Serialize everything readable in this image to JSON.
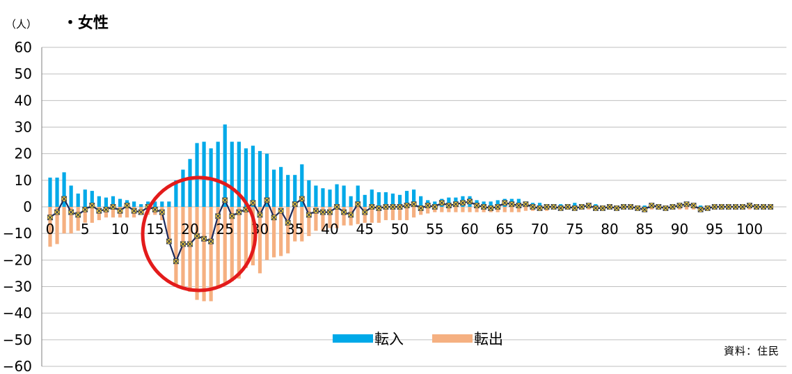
{
  "header": {
    "unit": "（人）",
    "title": "・女性"
  },
  "source": "資料：住民",
  "colors": {
    "inflow": "#00A9E8",
    "outflow": "#F5B081",
    "net_line": "#1B2A5C",
    "net_marker": "#E8C63A",
    "highlight_circle": "#E31B1B",
    "grid": "#BFBFBF"
  },
  "chart_data": {
    "type": "bar",
    "title": "・女性",
    "ylabel": "（人）",
    "ylim": [
      -60,
      60
    ],
    "yticks": [
      60,
      50,
      40,
      30,
      20,
      10,
      0,
      -10,
      -20,
      -30,
      -40,
      -50,
      -60
    ],
    "xlim": [
      0,
      103
    ],
    "xtick_labels": [
      "0",
      "5",
      "10",
      "15",
      "20",
      "25",
      "30",
      "35",
      "40",
      "45",
      "50",
      "55",
      "60",
      "65",
      "70",
      "75",
      "80",
      "85",
      "90",
      "95",
      "100"
    ],
    "xtick_values": [
      0,
      5,
      10,
      15,
      20,
      25,
      30,
      35,
      40,
      45,
      50,
      55,
      60,
      65,
      70,
      75,
      80,
      85,
      90,
      95,
      100
    ],
    "grid": true,
    "legend_position": "bottom-center",
    "annotation": "red circle highlighting ages 15-29",
    "series": [
      {
        "name": "転入",
        "kind": "bar",
        "values": [
          11,
          11,
          13,
          8,
          5,
          6.5,
          6,
          4,
          3.5,
          4,
          3,
          2.5,
          2,
          1,
          2,
          2,
          2,
          2,
          10,
          14,
          18,
          24,
          24.5,
          22,
          24.5,
          31,
          24.5,
          24.5,
          22,
          23,
          21,
          20,
          14,
          15,
          12,
          12,
          16,
          10,
          8,
          7,
          6.5,
          8.5,
          8,
          4,
          8,
          4.5,
          6.5,
          5.5,
          5.5,
          5,
          4.5,
          6,
          6.5,
          4,
          2.5,
          2,
          3,
          3.5,
          3.5,
          4,
          4,
          2.5,
          2,
          2,
          2.5,
          3,
          3,
          3,
          2,
          1.5,
          1.5,
          1,
          1,
          1,
          1,
          1.5,
          1,
          1,
          1,
          0.5,
          0.5,
          0.5,
          1,
          0.5,
          0.5,
          0.5,
          1,
          0.5,
          0.5,
          1,
          1,
          1,
          0.5,
          0.5,
          0.5,
          0.5,
          0.5,
          0.5,
          0.5,
          0.5,
          0.5,
          0.5,
          0.5,
          0.5
        ]
      },
      {
        "name": "転出",
        "kind": "bar",
        "values": [
          -15,
          -14,
          -10,
          -10,
          -9,
          -6,
          -6,
          -5,
          -4,
          -4,
          -4,
          -4,
          -4,
          -3,
          -3,
          -3,
          -5,
          -12,
          -30,
          -31,
          -32,
          -35,
          -35.5,
          -35.5,
          -30,
          -28.5,
          -28,
          -27,
          -23,
          -22,
          -25,
          -20,
          -19,
          -18.5,
          -17.5,
          -13,
          -13,
          -11,
          -9,
          -9,
          -8,
          -8,
          -7,
          -7,
          -6.5,
          -6,
          -6,
          -6,
          -5,
          -5,
          -5,
          -5,
          -4,
          -3,
          -2.5,
          -2,
          -2,
          -2,
          -2,
          -2,
          -2,
          -2,
          -2,
          -2,
          -2,
          -2,
          -2,
          -2,
          -1.5,
          -1.5,
          -1.5,
          -1.5,
          -1,
          -1,
          -1,
          -1,
          -1,
          -1,
          -1,
          -1,
          -1,
          -1,
          -1,
          -1,
          -1,
          -1,
          -1,
          -1,
          -1,
          -1,
          -1,
          -1,
          -1,
          -1,
          -1,
          -1,
          -1,
          -1,
          -1,
          -1,
          -1,
          -1,
          -1,
          -1
        ]
      },
      {
        "name": "net",
        "kind": "line",
        "values": [
          -4,
          -2,
          3,
          -2,
          -3,
          -1,
          0.5,
          -1.5,
          -1,
          0,
          -1.5,
          0.5,
          -1.5,
          -2,
          0,
          -1,
          -2,
          -13,
          -20.5,
          -14,
          -14,
          -11,
          -12,
          -13,
          -3.5,
          2.5,
          -3.5,
          -2,
          -1,
          1.5,
          -3,
          2.5,
          -4,
          -1.5,
          -6,
          1,
          3,
          -3,
          -1.5,
          -2,
          -2,
          0,
          -2,
          -3,
          1,
          -2,
          0,
          -0.5,
          0,
          0,
          0,
          0.5,
          1,
          -0.5,
          0.5,
          0,
          1.5,
          0.5,
          1,
          1.5,
          2,
          0.5,
          0,
          -0.5,
          0,
          1.5,
          1,
          0.5,
          1,
          0,
          -0.5,
          0,
          0,
          -0.5,
          0,
          -0.5,
          0,
          0.5,
          -0.5,
          -0.5,
          0,
          -0.5,
          0,
          0,
          -0.5,
          -1,
          0.5,
          0,
          -0.5,
          0,
          0.5,
          1,
          0.5,
          -1,
          -0.5,
          0,
          0,
          0,
          0,
          0,
          0.5,
          0,
          0,
          0
        ]
      }
    ]
  }
}
